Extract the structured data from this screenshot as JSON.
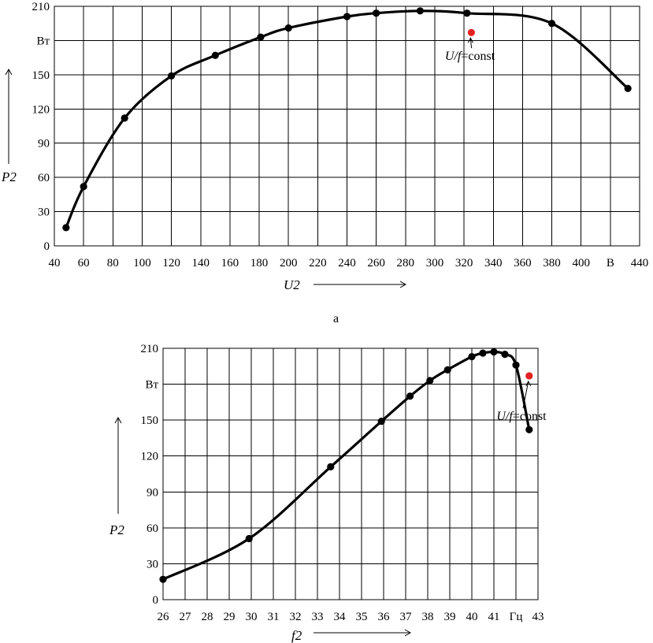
{
  "caption_a": "а",
  "chart_data": [
    {
      "type": "line",
      "x_ticks": [
        "40",
        "60",
        "80",
        "100",
        "120",
        "140",
        "160",
        "180",
        "200",
        "220",
        "240",
        "260",
        "280",
        "300",
        "320",
        "340",
        "360",
        "380",
        "400",
        "В",
        "440"
      ],
      "y_ticks": [
        "0",
        "30",
        "60",
        "90",
        "120",
        "150",
        "Вт",
        "210"
      ],
      "xlabel": "U2",
      "ylabel": "P2",
      "xlim": [
        40,
        440
      ],
      "ylim": [
        0,
        210
      ],
      "grid": true,
      "series": [
        {
          "x": [
            48,
            60,
            88,
            120,
            150,
            181,
            200,
            240,
            260,
            290,
            322,
            380,
            432
          ],
          "y": [
            16,
            52,
            112,
            149,
            167,
            183,
            191,
            201,
            204,
            206,
            204,
            195,
            138
          ]
        }
      ],
      "marker": {
        "x": 325,
        "y": 187,
        "color": "#e52222"
      },
      "annotation": {
        "text_italic": "U/f",
        "text_plain": "=const",
        "x": 324,
        "y": 163
      }
    },
    {
      "type": "line",
      "x_ticks": [
        "26",
        "27",
        "28",
        "29",
        "30",
        "31",
        "32",
        "33",
        "34",
        "35",
        "36",
        "37",
        "38",
        "39",
        "40",
        "41",
        "Гц",
        "43"
      ],
      "y_ticks": [
        "0",
        "30",
        "60",
        "90",
        "120",
        "150",
        "Вт",
        "210"
      ],
      "xlabel": "f2",
      "ylabel": "P2",
      "xlim": [
        26,
        43
      ],
      "ylim": [
        0,
        210
      ],
      "grid": true,
      "series": [
        {
          "x": [
            26,
            29.9,
            33.6,
            35.9,
            37.2,
            38.1,
            38.9,
            40.0,
            40.5,
            41.0,
            41.5,
            42.0,
            42.6
          ],
          "y": [
            17,
            51,
            111,
            149,
            170,
            183,
            192,
            203,
            206,
            207,
            205,
            196,
            142
          ]
        }
      ],
      "marker": {
        "x": 42.6,
        "y": 187,
        "color": "#e52222"
      },
      "annotation": {
        "text_italic": "U/f",
        "text_plain": "=const",
        "x": 42.25,
        "y": 150
      }
    }
  ]
}
